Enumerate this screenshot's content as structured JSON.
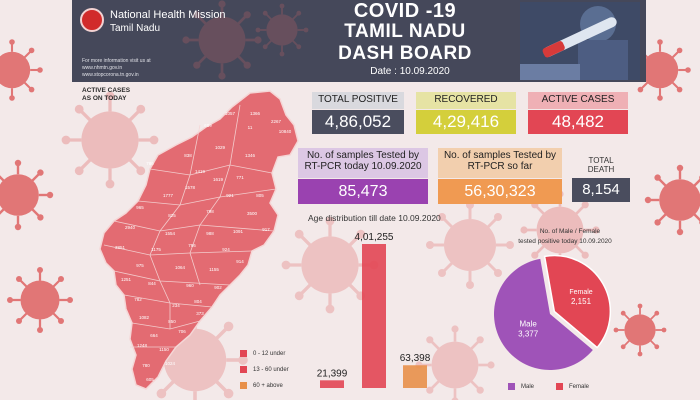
{
  "header": {
    "org_line1": "National Health Mission",
    "org_line2": "Tamil Nadu",
    "info_line1": "For more information visit us at",
    "info_line2": "www.nhmtn.gov.in",
    "info_line3": "www.stopcorona.tn.gov.in",
    "title_line1": "COVID -19",
    "title_line2": "TAMIL NADU",
    "title_line3": "DASH BOARD",
    "date": "Date : 10.09.2020"
  },
  "side_label_line1": "ACTIVE CASES",
  "side_label_line2": "AS ON TODAY",
  "stats": {
    "total_positive_label": "TOTAL POSITIVE",
    "total_positive_value": "4,86,052",
    "recovered_label": "RECOVERED",
    "recovered_value": "4,29,416",
    "active_label": "ACTIVE CASES",
    "active_value": "48,482",
    "rtpcr_today_label_line1": "No. of samples Tested by",
    "rtpcr_today_label_line2": "RT-PCR today 10.09.2020",
    "rtpcr_today_value": "85,473",
    "rtpcr_total_label_line1": "No. of samples Tested by",
    "rtpcr_total_label_line2": "RT-PCR so far",
    "rtpcr_total_value": "56,30,323",
    "death_label_line1": "TOTAL",
    "death_label_line2": "DEATH",
    "death_value": "8,154"
  },
  "colors": {
    "header_bg": "#45485a",
    "total_positive": "#4a4d5e",
    "recovered": "#d4cf3b",
    "active": "#e24654",
    "rtpcr_today": "#9a42b0",
    "rtpcr_total": "#f09a52",
    "death": "#4a4d5e",
    "age_0_12": "#e24654",
    "age_13_60": "#e24654",
    "age_60_plus": "#e8904a",
    "male": "#9f53b8",
    "female": "#e24654"
  },
  "chart_data": [
    {
      "type": "bar",
      "title": "Age distribution till date 10.09.2020",
      "categories": [
        "0 - 12 under",
        "13 - 60 under",
        "60 + above"
      ],
      "values": [
        21399,
        401255,
        63398
      ],
      "value_labels": [
        "21,399",
        "4,01,255",
        "63,398"
      ],
      "legend": [
        "0 - 12 under",
        "13 - 60 under",
        "60 + above"
      ],
      "legend_position": "left"
    },
    {
      "type": "pie",
      "title_line1": "No. of Male  / Female",
      "title_line2": "tested positive today 10.09.2020",
      "labels": [
        "Male",
        "Female"
      ],
      "values": [
        3377,
        2151
      ],
      "value_labels": [
        "3,377",
        "2,151"
      ],
      "legend": [
        "Male",
        "Female"
      ],
      "legend_position": "bottom"
    }
  ],
  "map": {
    "district_values": [
      "1057",
      "1366",
      "689",
      "11",
      "2267",
      "10840",
      "786",
      "838",
      "1029",
      "1419",
      "1346",
      "771",
      "1619",
      "1578",
      "1777",
      "921",
      "805",
      "965",
      "825",
      "798",
      "3500",
      "2940",
      "1554",
      "988",
      "1091",
      "917",
      "3851",
      "1175",
      "796",
      "924",
      "975",
      "1064",
      "1155",
      "914",
      "844",
      "960",
      "902",
      "782",
      "234",
      "804",
      "1082",
      "850",
      "664",
      "706",
      "1248",
      "1150",
      "780",
      "1024",
      "605",
      "373",
      "1251"
    ]
  }
}
